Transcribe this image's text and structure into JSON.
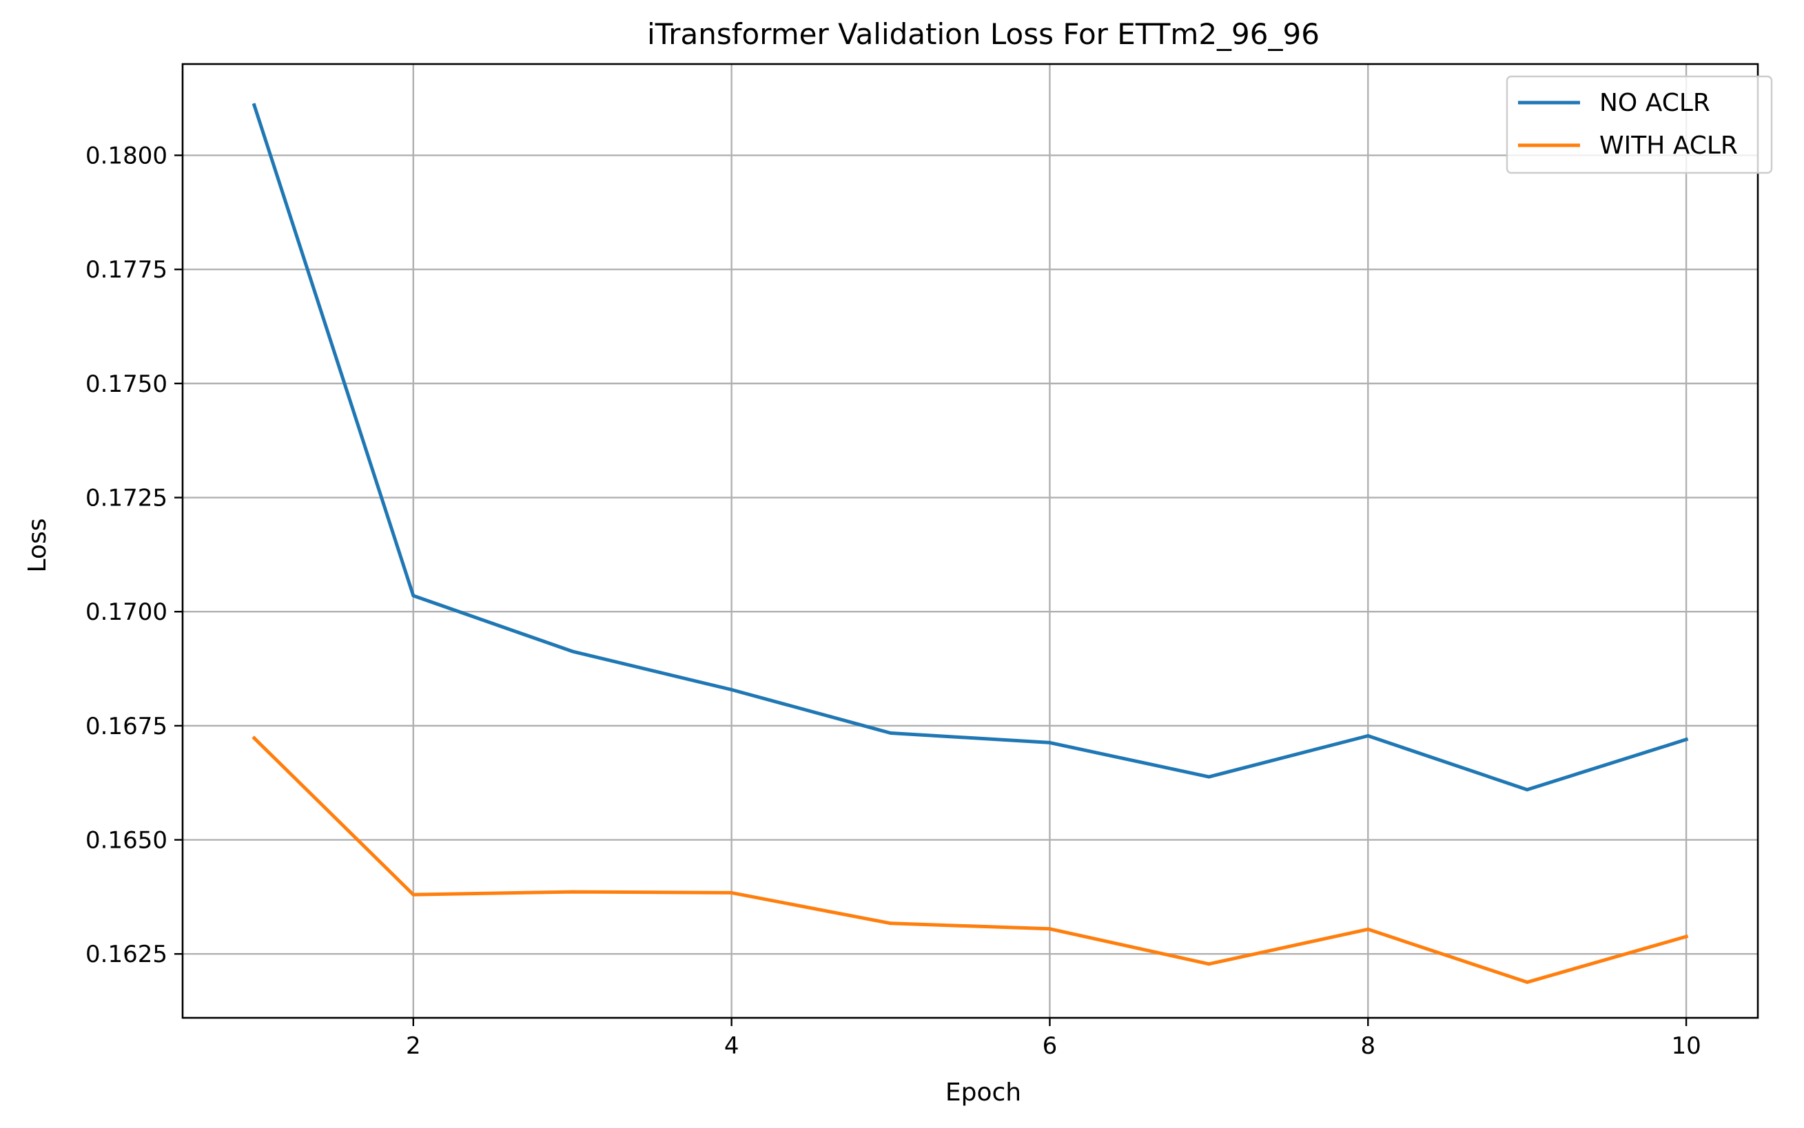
{
  "chart_data": {
    "type": "line",
    "title": "iTransformer Validation Loss For ETTm2_96_96",
    "xlabel": "Epoch",
    "ylabel": "Loss",
    "x": [
      1,
      2,
      3,
      4,
      5,
      6,
      7,
      8,
      9,
      10
    ],
    "xlim": [
      0.55,
      10.45
    ],
    "ylim": [
      0.1611,
      0.182
    ],
    "xticks": [
      2,
      4,
      6,
      8,
      10
    ],
    "xtick_labels": [
      "2",
      "4",
      "6",
      "8",
      "10"
    ],
    "yticks": [
      0.1625,
      0.165,
      0.1675,
      0.17,
      0.1725,
      0.175,
      0.1775,
      0.18
    ],
    "ytick_labels": [
      "0.1625",
      "0.1650",
      "0.1675",
      "0.1700",
      "0.1725",
      "0.1750",
      "0.1775",
      "0.1800"
    ],
    "grid": true,
    "legend_position": "top-right",
    "series": [
      {
        "name": "NO ACLR",
        "color": "#1f77b4",
        "values": [
          0.1811,
          0.17035,
          0.16913,
          0.16829,
          0.16734,
          0.16713,
          0.16638,
          0.16728,
          0.1661,
          0.1672
        ]
      },
      {
        "name": "WITH ACLR",
        "color": "#ff7f0e",
        "values": [
          0.16723,
          0.1638,
          0.16386,
          0.16384,
          0.16317,
          0.16305,
          0.16228,
          0.16304,
          0.16188,
          0.16288
        ]
      }
    ]
  }
}
